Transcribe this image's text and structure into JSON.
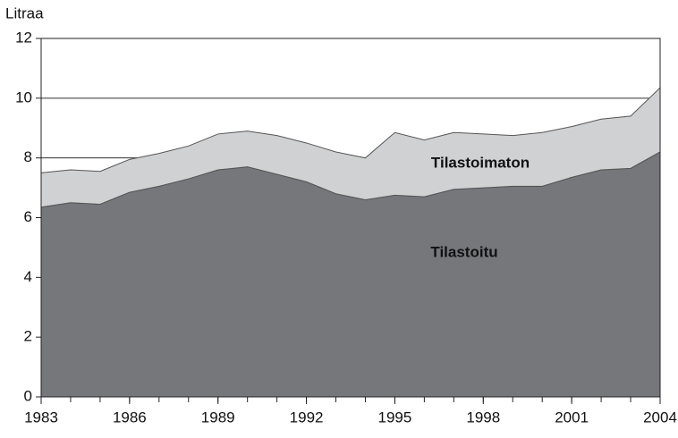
{
  "chart_data": {
    "type": "stacked_area",
    "y_label": "Litraa",
    "x": [
      1983,
      1984,
      1985,
      1986,
      1987,
      1988,
      1989,
      1990,
      1991,
      1992,
      1993,
      1994,
      1995,
      1996,
      1997,
      1998,
      1999,
      2000,
      2001,
      2002,
      2003,
      2004
    ],
    "series": [
      {
        "name": "Tilastoitu",
        "color": "#76777b",
        "values": [
          6.35,
          6.5,
          6.45,
          6.85,
          7.05,
          7.3,
          7.6,
          7.7,
          7.45,
          7.2,
          6.8,
          6.6,
          6.75,
          6.7,
          6.95,
          7.0,
          7.05,
          7.05,
          7.35,
          7.6,
          7.65,
          8.2
        ]
      },
      {
        "name": "Tilastoimaton",
        "color": "#d0d1d3",
        "values": [
          1.15,
          1.1,
          1.1,
          1.1,
          1.1,
          1.1,
          1.2,
          1.2,
          1.3,
          1.3,
          1.4,
          1.4,
          2.1,
          1.9,
          1.9,
          1.8,
          1.7,
          1.8,
          1.7,
          1.7,
          1.75,
          2.15
        ]
      }
    ],
    "xlim": [
      1983,
      2004
    ],
    "xticks": [
      1983,
      1986,
      1989,
      1992,
      1995,
      1998,
      2001,
      2004
    ],
    "ylim": [
      0,
      12
    ],
    "yticks": [
      0,
      2,
      4,
      6,
      8,
      10,
      12
    ],
    "grid": true
  }
}
